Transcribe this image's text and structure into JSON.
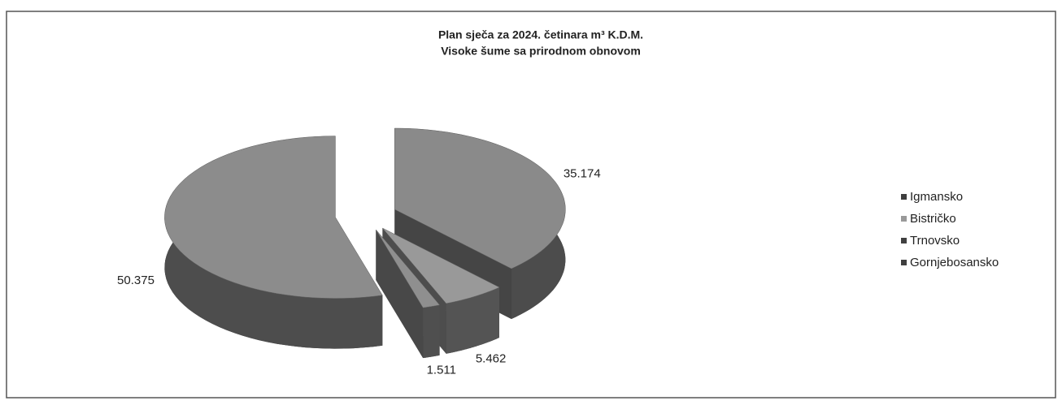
{
  "chart_data": {
    "type": "pie",
    "title": "Plan sječa za 2024. četinara m³ K.D.M.",
    "subtitle": "Visoke šume sa prirodnom obnovom",
    "categories": [
      "Igmansko",
      "Bistričko",
      "Trnovsko",
      "Gornjebosansko"
    ],
    "values": [
      35174,
      5462,
      1511,
      50375
    ],
    "value_labels": [
      "35.174",
      "5.462",
      "1.511",
      "50.375"
    ],
    "colors": [
      "#8a8a8a",
      "#999999",
      "#8f8f8f",
      "#8c8c8c"
    ],
    "legend": "right"
  }
}
